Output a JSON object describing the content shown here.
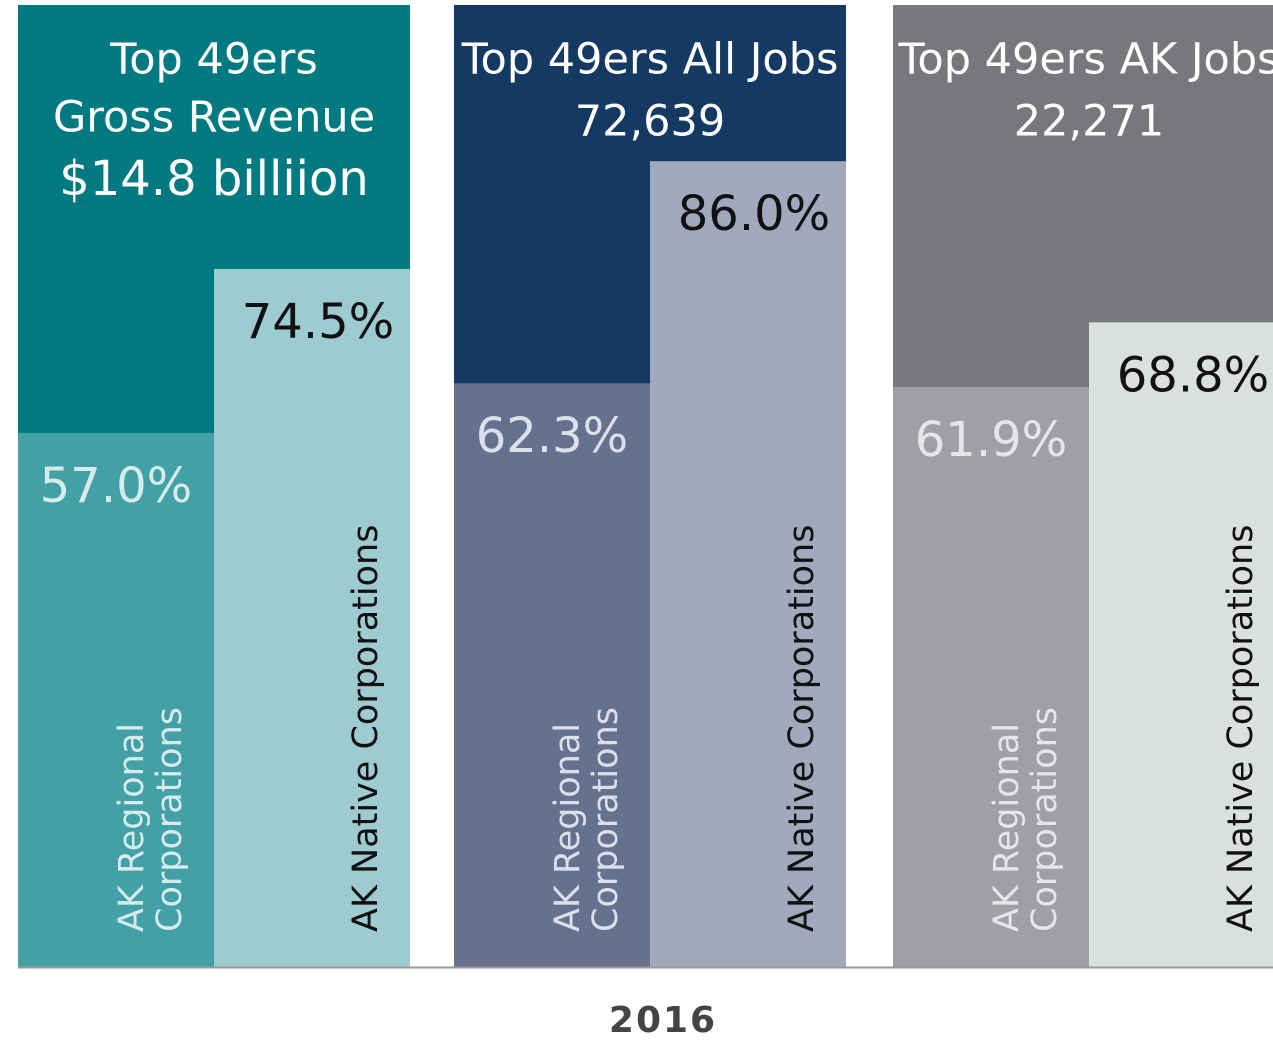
{
  "chart_data": [
    {
      "type": "bar",
      "title": [
        "Top 49ers",
        "Gross Revenue",
        "$14.8 billiion"
      ],
      "categories": [
        [
          "AK Regional",
          "Corporations"
        ],
        [
          "AK Native Corporations"
        ]
      ],
      "values": [
        57.0,
        74.5
      ],
      "value_labels": [
        "57.0%",
        "74.5%"
      ],
      "ylim": [
        0,
        100
      ],
      "background": "#007a80",
      "colors": [
        "#42a0a6",
        "#9ecbd0"
      ]
    },
    {
      "type": "bar",
      "title": [
        "Top 49ers All Jobs",
        "72,639"
      ],
      "categories": [
        [
          "AK Regional",
          "Corporations"
        ],
        [
          "AK Native Corporations"
        ]
      ],
      "values": [
        62.3,
        86.0
      ],
      "value_labels": [
        "62.3%",
        "86.0%"
      ],
      "ylim": [
        0,
        100
      ],
      "background": "#143a63",
      "colors": [
        "#66718f",
        "#a3a9bc"
      ]
    },
    {
      "type": "bar",
      "title": [
        "Top 49ers AK Jobs",
        "22,271"
      ],
      "categories": [
        [
          "AK Regional",
          "Corporations"
        ],
        [
          "AK Native Corporations"
        ]
      ],
      "values": [
        61.9,
        68.8
      ],
      "value_labels": [
        "61.9%",
        "68.8%"
      ],
      "ylim": [
        0,
        100
      ],
      "background": "#78777b",
      "colors": [
        "#a09fa3",
        "#dcdfe0"
      ]
    }
  ],
  "caption": "2016"
}
